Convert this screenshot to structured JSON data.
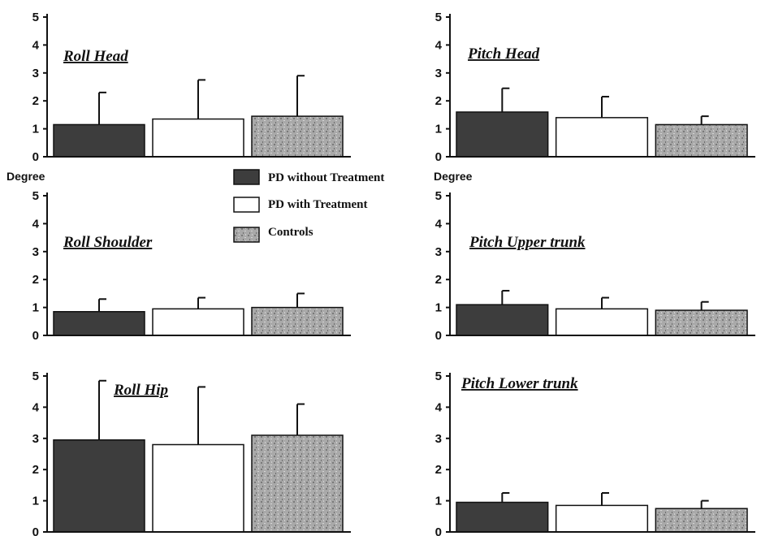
{
  "colors": {
    "pd_without": "#3d3d3d",
    "pd_with": "#ffffff",
    "controls": "#a9a9a9",
    "axis": "#111111"
  },
  "chart_data": [
    {
      "type": "bar",
      "title": "Roll  Head",
      "ylabel": "",
      "categories": [
        "PD without Treatment",
        "PD with Treatment",
        "Controls"
      ],
      "values": [
        1.15,
        1.35,
        1.45
      ],
      "error": [
        1.15,
        1.4,
        1.45
      ],
      "ylim": [
        0,
        5
      ],
      "yticks": [
        "0",
        "1",
        "2",
        "3",
        "4",
        "5"
      ]
    },
    {
      "type": "bar",
      "title": "Pitch Head",
      "ylabel": "",
      "categories": [
        "PD without Treatment",
        "PD with Treatment",
        "Controls"
      ],
      "values": [
        1.6,
        1.4,
        1.15
      ],
      "error": [
        0.85,
        0.75,
        0.3
      ],
      "ylim": [
        0,
        5
      ],
      "yticks": [
        "0",
        "1",
        "2",
        "3",
        "4",
        "5"
      ]
    },
    {
      "type": "bar",
      "title": "Roll  Shoulder",
      "ylabel": "Degree",
      "categories": [
        "PD without Treatment",
        "PD with Treatment",
        "Controls"
      ],
      "values": [
        0.85,
        0.95,
        1.0
      ],
      "error": [
        0.45,
        0.4,
        0.5
      ],
      "ylim": [
        0,
        5
      ],
      "yticks": [
        "0",
        "1",
        "2",
        "3",
        "4",
        "5"
      ]
    },
    {
      "type": "bar",
      "title": "Pitch Upper trunk",
      "ylabel": "Degree",
      "categories": [
        "PD without Treatment",
        "PD with Treatment",
        "Controls"
      ],
      "values": [
        1.1,
        0.95,
        0.9
      ],
      "error": [
        0.5,
        0.4,
        0.3
      ],
      "ylim": [
        0,
        5
      ],
      "yticks": [
        "0",
        "1",
        "2",
        "3",
        "4",
        "5"
      ]
    },
    {
      "type": "bar",
      "title": "Roll  Hip",
      "ylabel": "",
      "categories": [
        "PD without Treatment",
        "PD with Treatment",
        "Controls"
      ],
      "values": [
        2.95,
        2.8,
        3.1
      ],
      "error": [
        1.9,
        1.85,
        1.0
      ],
      "ylim": [
        0,
        5
      ],
      "yticks": [
        "0",
        "1",
        "2",
        "3",
        "4",
        "5"
      ]
    },
    {
      "type": "bar",
      "title": "Pitch Lower trunk",
      "ylabel": "",
      "categories": [
        "PD without Treatment",
        "PD with Treatment",
        "Controls"
      ],
      "values": [
        0.95,
        0.85,
        0.75
      ],
      "error": [
        0.3,
        0.4,
        0.25
      ],
      "ylim": [
        0,
        5
      ],
      "yticks": [
        "0",
        "1",
        "2",
        "3",
        "4",
        "5"
      ]
    }
  ],
  "legend": [
    {
      "label": "PD without Treatment",
      "color": "#3d3d3d",
      "pattern": "solid"
    },
    {
      "label": "PD with Treatment",
      "color": "#ffffff",
      "pattern": "outline"
    },
    {
      "label": " Controls",
      "color": "#a9a9a9",
      "pattern": "speckled"
    }
  ]
}
